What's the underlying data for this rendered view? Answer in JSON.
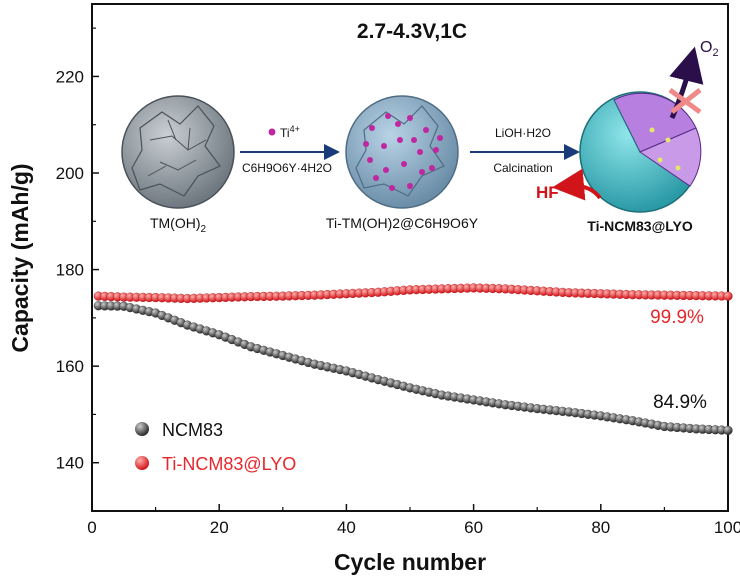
{
  "chart_data": {
    "type": "scatter",
    "title": "2.7-4.3V,1C",
    "xlabel": "Cycle number",
    "ylabel": "Capacity (mAh/g)",
    "xlim": [
      0,
      100
    ],
    "ylim": [
      130,
      235
    ],
    "xticks": [
      0,
      20,
      40,
      60,
      80,
      100
    ],
    "yticks": [
      140,
      160,
      180,
      200,
      220
    ],
    "legend_position": "lower-left",
    "series": [
      {
        "name": "NCM83",
        "color": "#555555",
        "x": [
          1,
          5,
          10,
          15,
          20,
          25,
          30,
          35,
          40,
          45,
          50,
          55,
          60,
          65,
          70,
          75,
          80,
          85,
          90,
          95,
          100
        ],
        "values": [
          172.5,
          172.4,
          171.0,
          168.5,
          166.5,
          164.0,
          162.2,
          160.4,
          159.0,
          157.2,
          155.5,
          154.0,
          153.0,
          152.0,
          151.2,
          150.5,
          149.7,
          148.7,
          147.5,
          147.0,
          146.7
        ],
        "end_label": "84.9%"
      },
      {
        "name": "Ti-NCM83@LYO",
        "color": "#e8262b",
        "x": [
          1,
          5,
          10,
          15,
          20,
          25,
          30,
          35,
          40,
          45,
          50,
          55,
          60,
          65,
          70,
          75,
          80,
          85,
          90,
          95,
          100
        ],
        "values": [
          174.5,
          174.3,
          174.2,
          174.0,
          174.2,
          174.4,
          174.5,
          174.7,
          175.0,
          175.3,
          175.8,
          176.0,
          176.2,
          176.0,
          175.6,
          175.2,
          175.0,
          174.8,
          174.7,
          174.6,
          174.5
        ],
        "end_label": "99.9%"
      }
    ]
  },
  "schematic": {
    "sphere1_label_main": "TM(OH)",
    "sphere1_label_sub": "2",
    "step1_label": "Ti",
    "step1_sup": "4+",
    "step1_formula": "C6H9O6Y·4H2O",
    "sphere2_label": "Ti-TM(OH)2@C6H9O6Y",
    "step2_top": "LiOH·H2O",
    "step2_bottom": "Calcination",
    "sphere3_label": "Ti-NCM83@LYO",
    "hf_label": "HF",
    "o2_main": "O",
    "o2_sub": "2"
  }
}
